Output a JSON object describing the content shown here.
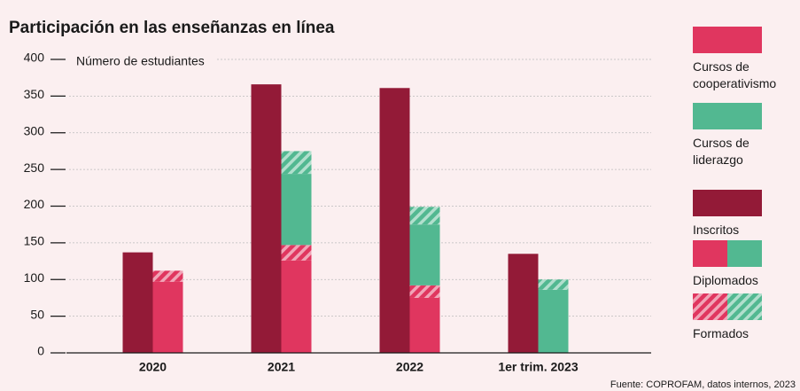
{
  "chart_data": {
    "type": "bar",
    "title": "Participación en las enseñanzas en línea",
    "y_label": "Número de estudiantes",
    "source": "Fuente: COPROFAM, datos internos, 2023",
    "categories": [
      "2020",
      "2021",
      "2022",
      "1er trim. 2023"
    ],
    "series": [
      {
        "color": "#931a37",
        "pattern": "solid",
        "stack": "left",
        "values": [
          137,
          366,
          361,
          135
        ]
      },
      {
        "color": "#e0365f",
        "pattern": "solid",
        "stack": "right",
        "values": [
          97,
          126,
          75,
          null
        ]
      },
      {
        "color": "#e0365f",
        "pattern": "hatched",
        "stack": "right",
        "values": [
          15,
          21,
          17,
          null
        ]
      },
      {
        "color": "#52b891",
        "pattern": "solid",
        "stack": "right",
        "values": [
          null,
          97,
          83,
          86
        ]
      },
      {
        "color": "#52b891",
        "pattern": "hatched",
        "stack": "right",
        "values": [
          null,
          31,
          24,
          14
        ]
      }
    ],
    "legend": [
      {
        "label": "Cursos de cooperativismo",
        "colors": [
          "#e0365f"
        ],
        "pattern": "solid"
      },
      {
        "label": "Cursos de liderazgo",
        "colors": [
          "#52b891"
        ],
        "pattern": "solid"
      },
      {
        "label": "Inscritos",
        "colors": [
          "#931a37"
        ],
        "pattern": "solid"
      },
      {
        "label": "Diplomados",
        "colors": [
          "#e0365f",
          "#52b891"
        ],
        "pattern": "solid"
      },
      {
        "label": "Formados",
        "colors": [
          "#e0365f",
          "#52b891"
        ],
        "pattern": "hatched"
      }
    ],
    "ylim": [
      0,
      400
    ],
    "yticks": [
      0,
      50,
      100,
      150,
      200,
      250,
      300,
      350,
      400
    ],
    "grid": true
  }
}
